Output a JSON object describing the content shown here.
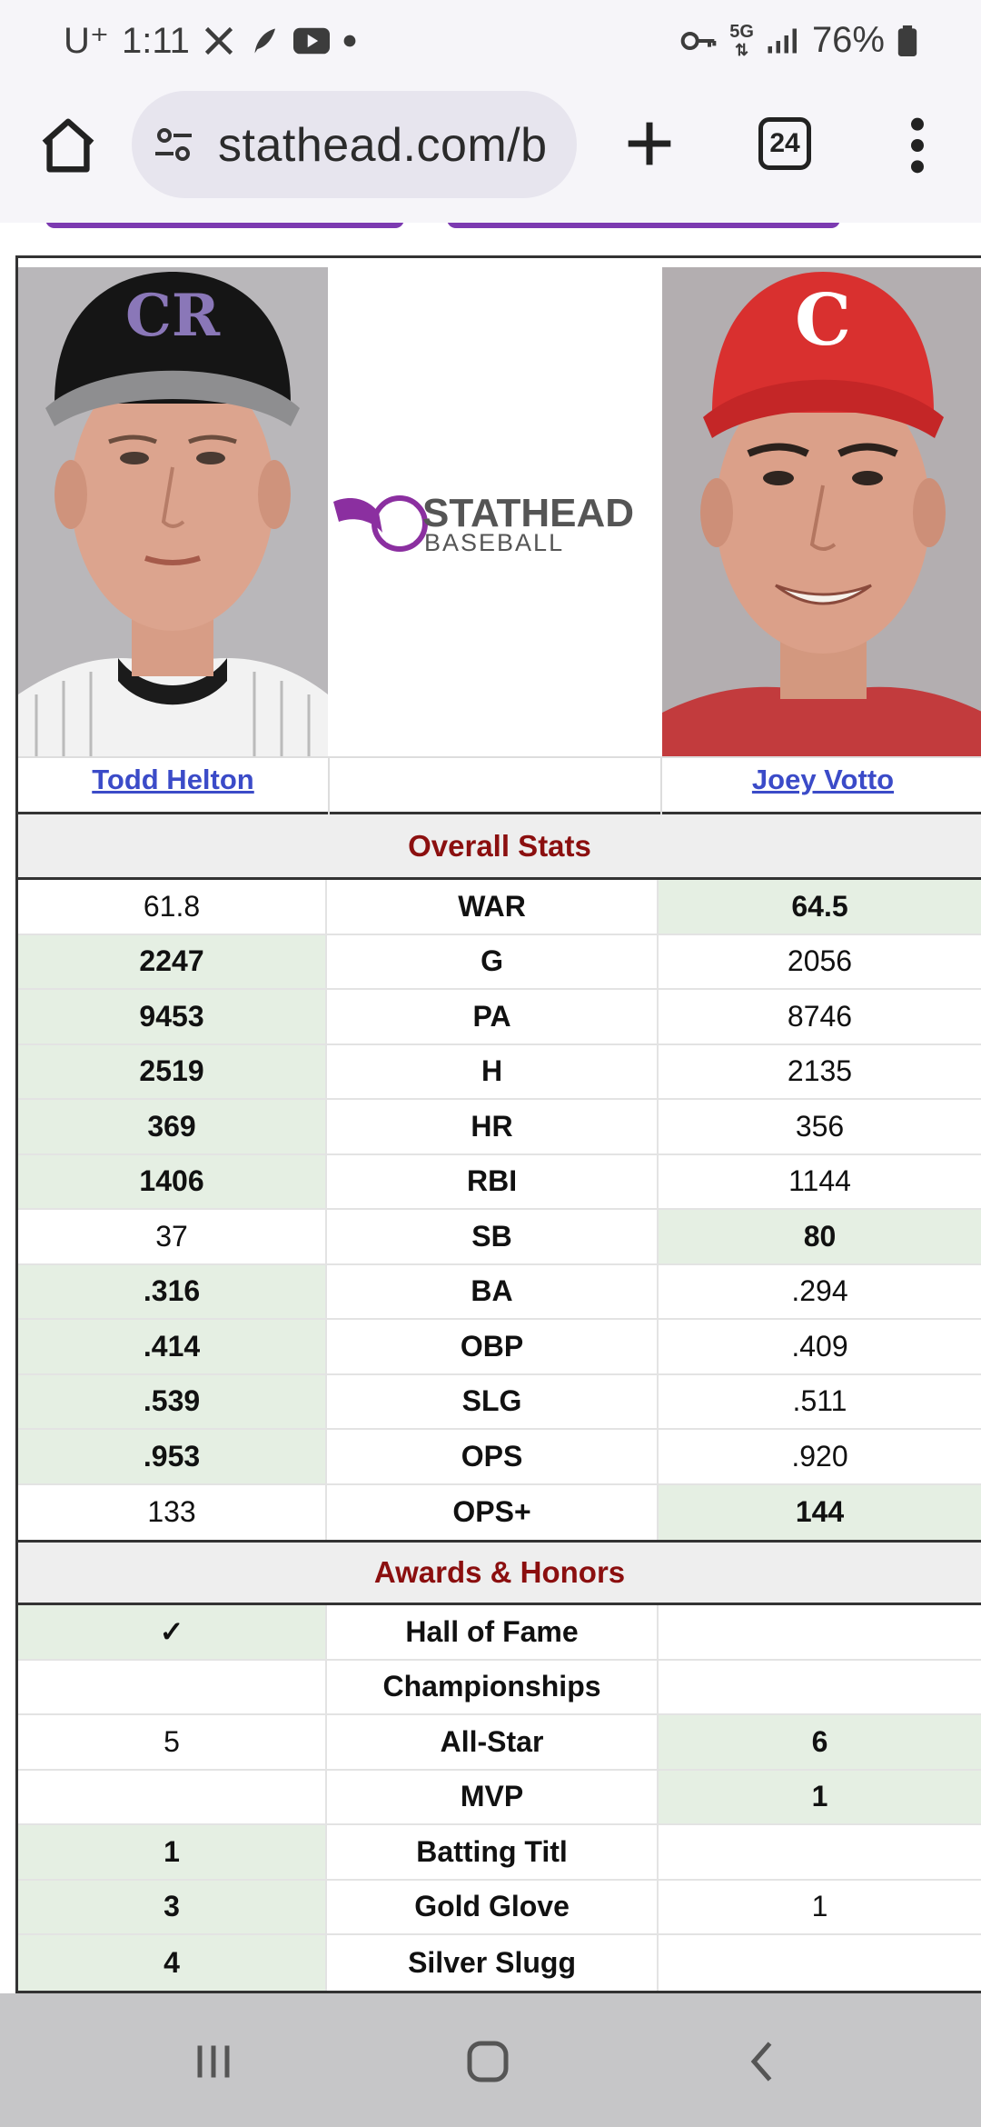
{
  "status_bar": {
    "carrier": "U⁺",
    "time": "1:11",
    "network": "5G",
    "battery": "76%",
    "icons": [
      "x-icon",
      "feather-icon",
      "youtube-icon",
      "dot-icon",
      "key-icon",
      "signal-icon",
      "battery-icon"
    ]
  },
  "browser": {
    "url": "stathead.com/b",
    "tab_count": "24"
  },
  "players": {
    "left": {
      "name": "Todd Helton",
      "cap_logo": "CR"
    },
    "right": {
      "name": "Joey Votto",
      "cap_logo": "C"
    },
    "logo": {
      "title": "STATHEAD",
      "subtitle": "BASEBALL"
    }
  },
  "overall": {
    "title": "Overall Stats",
    "rows": [
      {
        "stat": "WAR",
        "left": "61.8",
        "right": "64.5",
        "winner": "right"
      },
      {
        "stat": "G",
        "left": "2247",
        "right": "2056",
        "winner": "left"
      },
      {
        "stat": "PA",
        "left": "9453",
        "right": "8746",
        "winner": "left"
      },
      {
        "stat": "H",
        "left": "2519",
        "right": "2135",
        "winner": "left"
      },
      {
        "stat": "HR",
        "left": "369",
        "right": "356",
        "winner": "left"
      },
      {
        "stat": "RBI",
        "left": "1406",
        "right": "1144",
        "winner": "left"
      },
      {
        "stat": "SB",
        "left": "37",
        "right": "80",
        "winner": "right"
      },
      {
        "stat": "BA",
        "left": ".316",
        "right": ".294",
        "winner": "left"
      },
      {
        "stat": "OBP",
        "left": ".414",
        "right": ".409",
        "winner": "left"
      },
      {
        "stat": "SLG",
        "left": ".539",
        "right": ".511",
        "winner": "left"
      },
      {
        "stat": "OPS",
        "left": ".953",
        "right": ".920",
        "winner": "left"
      },
      {
        "stat": "OPS+",
        "left": "133",
        "right": "144",
        "winner": "right"
      }
    ]
  },
  "awards": {
    "title": "Awards & Honors",
    "rows": [
      {
        "stat": "Hall of Fame",
        "left": "✓",
        "right": "",
        "winner": "left"
      },
      {
        "stat": "Championships",
        "left": "",
        "right": "",
        "winner": "none"
      },
      {
        "stat": "All-Star",
        "left": "5",
        "right": "6",
        "winner": "right"
      },
      {
        "stat": "MVP",
        "left": "",
        "right": "1",
        "winner": "right"
      },
      {
        "stat": "Batting Titl",
        "left": "1",
        "right": "",
        "winner": "left"
      },
      {
        "stat": "Gold Glove",
        "left": "3",
        "right": "1",
        "winner": "left"
      },
      {
        "stat": "Silver Slugg",
        "left": "4",
        "right": "",
        "winner": "left"
      }
    ]
  },
  "colors": {
    "winner_bg": "#e5efe3",
    "section_title": "#8b0f0f",
    "link": "#3b4bc8",
    "brand_purple": "#7c3ab1"
  }
}
